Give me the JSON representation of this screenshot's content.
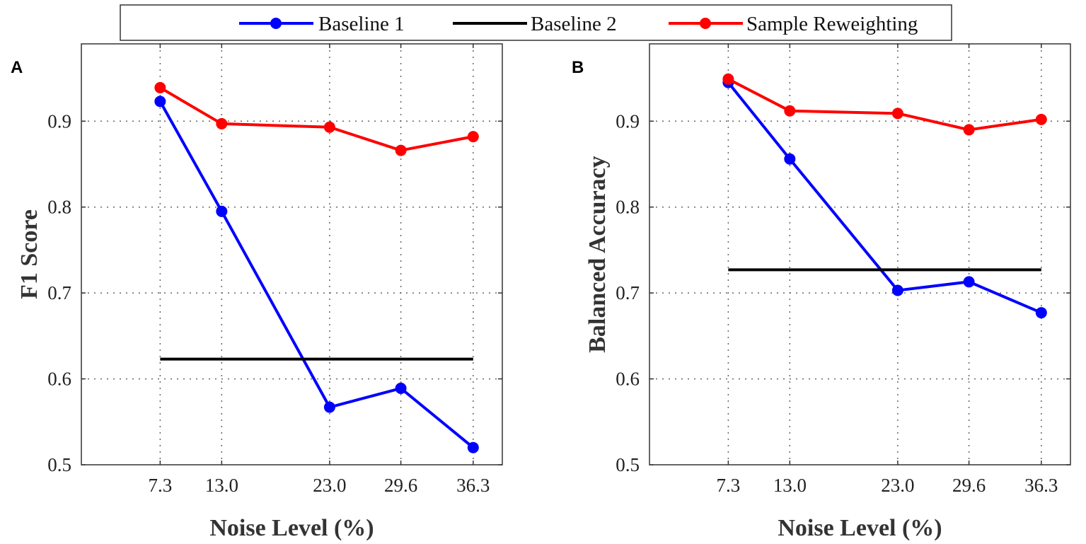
{
  "legend": {
    "entries": [
      {
        "name": "Baseline 1",
        "color": "#0000ff",
        "marker": true
      },
      {
        "name": "Baseline 2",
        "color": "#000000",
        "marker": false
      },
      {
        "name": "Sample Reweighting",
        "color": "#ff0000",
        "marker": true
      }
    ],
    "placement": "top-center"
  },
  "chart_data": [
    {
      "type": "line",
      "panel_label": "A",
      "xlabel": "Noise Level (%)",
      "ylabel": "F1 Score",
      "x": [
        7.3,
        13.0,
        23.0,
        29.6,
        36.3
      ],
      "x_tick_labels": [
        "7.3",
        "13.0",
        "23.0",
        "29.6",
        "36.3"
      ],
      "y_ticks": [
        0.5,
        0.6,
        0.7,
        0.8,
        0.9
      ],
      "y_tick_labels": [
        "0.5",
        "0.6",
        "0.7",
        "0.8",
        "0.9"
      ],
      "xlim": [
        0,
        39
      ],
      "ylim": [
        0.5,
        0.99
      ],
      "grid": true,
      "series": [
        {
          "name": "Baseline 1",
          "color": "#0000ff",
          "values": [
            0.923,
            0.795,
            0.567,
            0.589,
            0.52
          ]
        },
        {
          "name": "Baseline 2",
          "color": "#000000",
          "values": [
            0.623,
            0.623,
            0.623,
            0.623,
            0.623
          ]
        },
        {
          "name": "Sample Reweighting",
          "color": "#ff0000",
          "values": [
            0.939,
            0.897,
            0.893,
            0.866,
            0.882
          ]
        }
      ]
    },
    {
      "type": "line",
      "panel_label": "B",
      "xlabel": "Noise Level (%)",
      "ylabel": "Balanced Accuracy",
      "x": [
        7.3,
        13.0,
        23.0,
        29.6,
        36.3
      ],
      "x_tick_labels": [
        "7.3",
        "13.0",
        "23.0",
        "29.6",
        "36.3"
      ],
      "y_ticks": [
        0.5,
        0.6,
        0.7,
        0.8,
        0.9
      ],
      "y_tick_labels": [
        "0.5",
        "0.6",
        "0.7",
        "0.8",
        "0.9"
      ],
      "xlim": [
        0,
        39
      ],
      "ylim": [
        0.5,
        0.99
      ],
      "grid": true,
      "series": [
        {
          "name": "Baseline 1",
          "color": "#0000ff",
          "values": [
            0.945,
            0.856,
            0.703,
            0.713,
            0.677
          ]
        },
        {
          "name": "Baseline 2",
          "color": "#000000",
          "values": [
            0.727,
            0.727,
            0.727,
            0.727,
            0.727
          ]
        },
        {
          "name": "Sample Reweighting",
          "color": "#ff0000",
          "values": [
            0.949,
            0.912,
            0.909,
            0.89,
            0.902
          ]
        }
      ]
    }
  ]
}
